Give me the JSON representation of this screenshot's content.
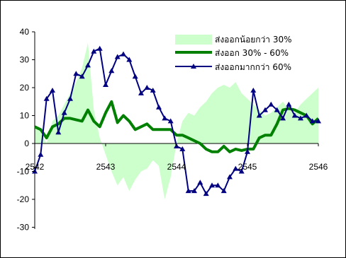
{
  "chart_data": {
    "type": "line",
    "title": "",
    "xlabel": "",
    "ylabel": "",
    "ylim": [
      -30,
      40
    ],
    "xlim": [
      2542,
      2546
    ],
    "y_ticks": [
      "40",
      "30",
      "20",
      "10",
      "0",
      "-10",
      "-20",
      "-30"
    ],
    "x_ticks": [
      "2542",
      "2543",
      "2544",
      "2545",
      "2546"
    ],
    "legend_position": "top-right",
    "grid": false,
    "series": [
      {
        "name": "ส่งออกน้อยกว่า 30%",
        "kind": "area",
        "color": "#ccffcc",
        "x": [
          2542.0,
          2542.083,
          2542.167,
          2542.25,
          2542.333,
          2542.417,
          2542.5,
          2542.583,
          2542.667,
          2542.75,
          2542.833,
          2542.917,
          2543.0,
          2543.083,
          2543.167,
          2543.25,
          2543.333,
          2543.417,
          2543.5,
          2543.583,
          2543.667,
          2543.75,
          2543.833,
          2543.917,
          2544.0,
          2544.083,
          2544.167,
          2544.25,
          2544.333,
          2544.417,
          2544.5,
          2544.583,
          2544.667,
          2544.75,
          2544.833,
          2544.917,
          2545.0,
          2545.083,
          2545.167,
          2545.25,
          2545.333,
          2545.417,
          2545.5,
          2545.583,
          2545.667,
          2545.75,
          2545.833,
          2545.917,
          2546.0
        ],
        "values": [
          6,
          4,
          0,
          8,
          10,
          14,
          18,
          22,
          27,
          36,
          12,
          2,
          -4,
          -10,
          -15,
          -12,
          -17,
          -13,
          -10,
          -9,
          -6,
          -8,
          -20,
          -12,
          0,
          8,
          11,
          10,
          13,
          15,
          18,
          20,
          21,
          20,
          22,
          18,
          16,
          14,
          12,
          10,
          11,
          13,
          15,
          12,
          11,
          14,
          16,
          18,
          20
        ]
      },
      {
        "name": "ส่งออก 30% - 60%",
        "kind": "line",
        "color": "#008000",
        "x": [
          2542.0,
          2542.083,
          2542.167,
          2542.25,
          2542.333,
          2542.417,
          2542.5,
          2542.583,
          2542.667,
          2542.75,
          2542.833,
          2542.917,
          2543.0,
          2543.083,
          2543.167,
          2543.25,
          2543.333,
          2543.417,
          2543.5,
          2543.583,
          2543.667,
          2543.75,
          2543.833,
          2543.917,
          2544.0,
          2544.083,
          2544.167,
          2544.25,
          2544.333,
          2544.417,
          2544.5,
          2544.583,
          2544.667,
          2544.75,
          2544.833,
          2544.917,
          2545.0,
          2545.083,
          2545.167,
          2545.25,
          2545.333,
          2545.417,
          2545.5,
          2545.583,
          2545.667,
          2545.75,
          2545.833,
          2545.917,
          2546.0
        ],
        "values": [
          6,
          5,
          2,
          6,
          7,
          9,
          9,
          8.5,
          8,
          12,
          8,
          6,
          11,
          15,
          7.5,
          10,
          8,
          5,
          6,
          7,
          5,
          5,
          5,
          5,
          3,
          3,
          2,
          1,
          0,
          -2,
          -3,
          -3,
          -1,
          -3,
          -2,
          -2.5,
          -2,
          -2,
          2,
          3,
          3,
          7,
          12,
          12.5,
          12,
          11,
          10,
          7,
          9
        ]
      },
      {
        "name": "ส่งออกมากกว่า 60%",
        "kind": "line-marker",
        "color": "#000080",
        "x": [
          2542.0,
          2542.083,
          2542.167,
          2542.25,
          2542.333,
          2542.417,
          2542.5,
          2542.583,
          2542.667,
          2542.75,
          2542.833,
          2542.917,
          2543.0,
          2543.083,
          2543.167,
          2543.25,
          2543.333,
          2543.417,
          2543.5,
          2543.583,
          2543.667,
          2543.75,
          2543.833,
          2543.917,
          2544.0,
          2544.083,
          2544.167,
          2544.25,
          2544.333,
          2544.417,
          2544.5,
          2544.583,
          2544.667,
          2544.75,
          2544.833,
          2544.917,
          2545.0,
          2545.083,
          2545.167,
          2545.25,
          2545.333,
          2545.417,
          2545.5,
          2545.583,
          2545.667,
          2545.75,
          2545.833,
          2545.917,
          2546.0
        ],
        "values": [
          -10,
          -4,
          16,
          19,
          4,
          11,
          16,
          25,
          24,
          28,
          33,
          34,
          21,
          26,
          31,
          32,
          30,
          24,
          18,
          20,
          19,
          13,
          9,
          8,
          -1,
          -2,
          -17,
          -17,
          -14,
          -18,
          -15,
          -15,
          -17,
          -12,
          -9,
          -10,
          -3,
          19,
          10,
          12,
          14,
          12,
          9,
          14,
          10,
          9,
          10,
          8,
          8
        ]
      }
    ]
  }
}
